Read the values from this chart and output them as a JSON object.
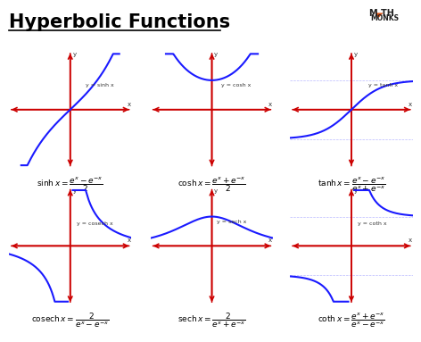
{
  "title": "Hyperbolic Functions",
  "bg_color": "#ffffff",
  "title_color": "#000000",
  "curve_color": "#1a1aff",
  "axis_color": "#cc0000",
  "formula_bg": "#dce9f7",
  "formula_border": "#aaaacc",
  "plots": [
    {
      "name": "sinh",
      "label": "y = sinh x",
      "formula": "$\\sinh x = \\dfrac{e^x - e^{-x}}{2}$",
      "row": 0,
      "col": 0
    },
    {
      "name": "cosh",
      "label": "y = cosh x",
      "formula": "$\\cosh x = \\dfrac{e^x + e^{-x}}{2}$",
      "row": 0,
      "col": 1
    },
    {
      "name": "tanh",
      "label": "y = tanh x",
      "formula": "$\\tanh x = \\dfrac{e^x - e^{-x}}{e^x + e^{-x}}$",
      "row": 0,
      "col": 2
    },
    {
      "name": "cosech",
      "label": "y = cosech x",
      "formula": "$\\text{cosech}\\, x = \\dfrac{2}{e^x - e^{-x}}$",
      "row": 1,
      "col": 0
    },
    {
      "name": "sech",
      "label": "y = sech x",
      "formula": "$\\text{sech}\\, x = \\dfrac{2}{e^x + e^{-x}}$",
      "row": 1,
      "col": 1
    },
    {
      "name": "coth",
      "label": "y = coth x",
      "formula": "$\\text{coth}\\, x = \\dfrac{e^x + e^{-x}}{e^x - e^{-x}}$",
      "row": 1,
      "col": 2
    }
  ],
  "mathmonks_text": "M▲TH\nMONKS",
  "mathmonks_color": "#222222",
  "triangle_color": "#e05010"
}
